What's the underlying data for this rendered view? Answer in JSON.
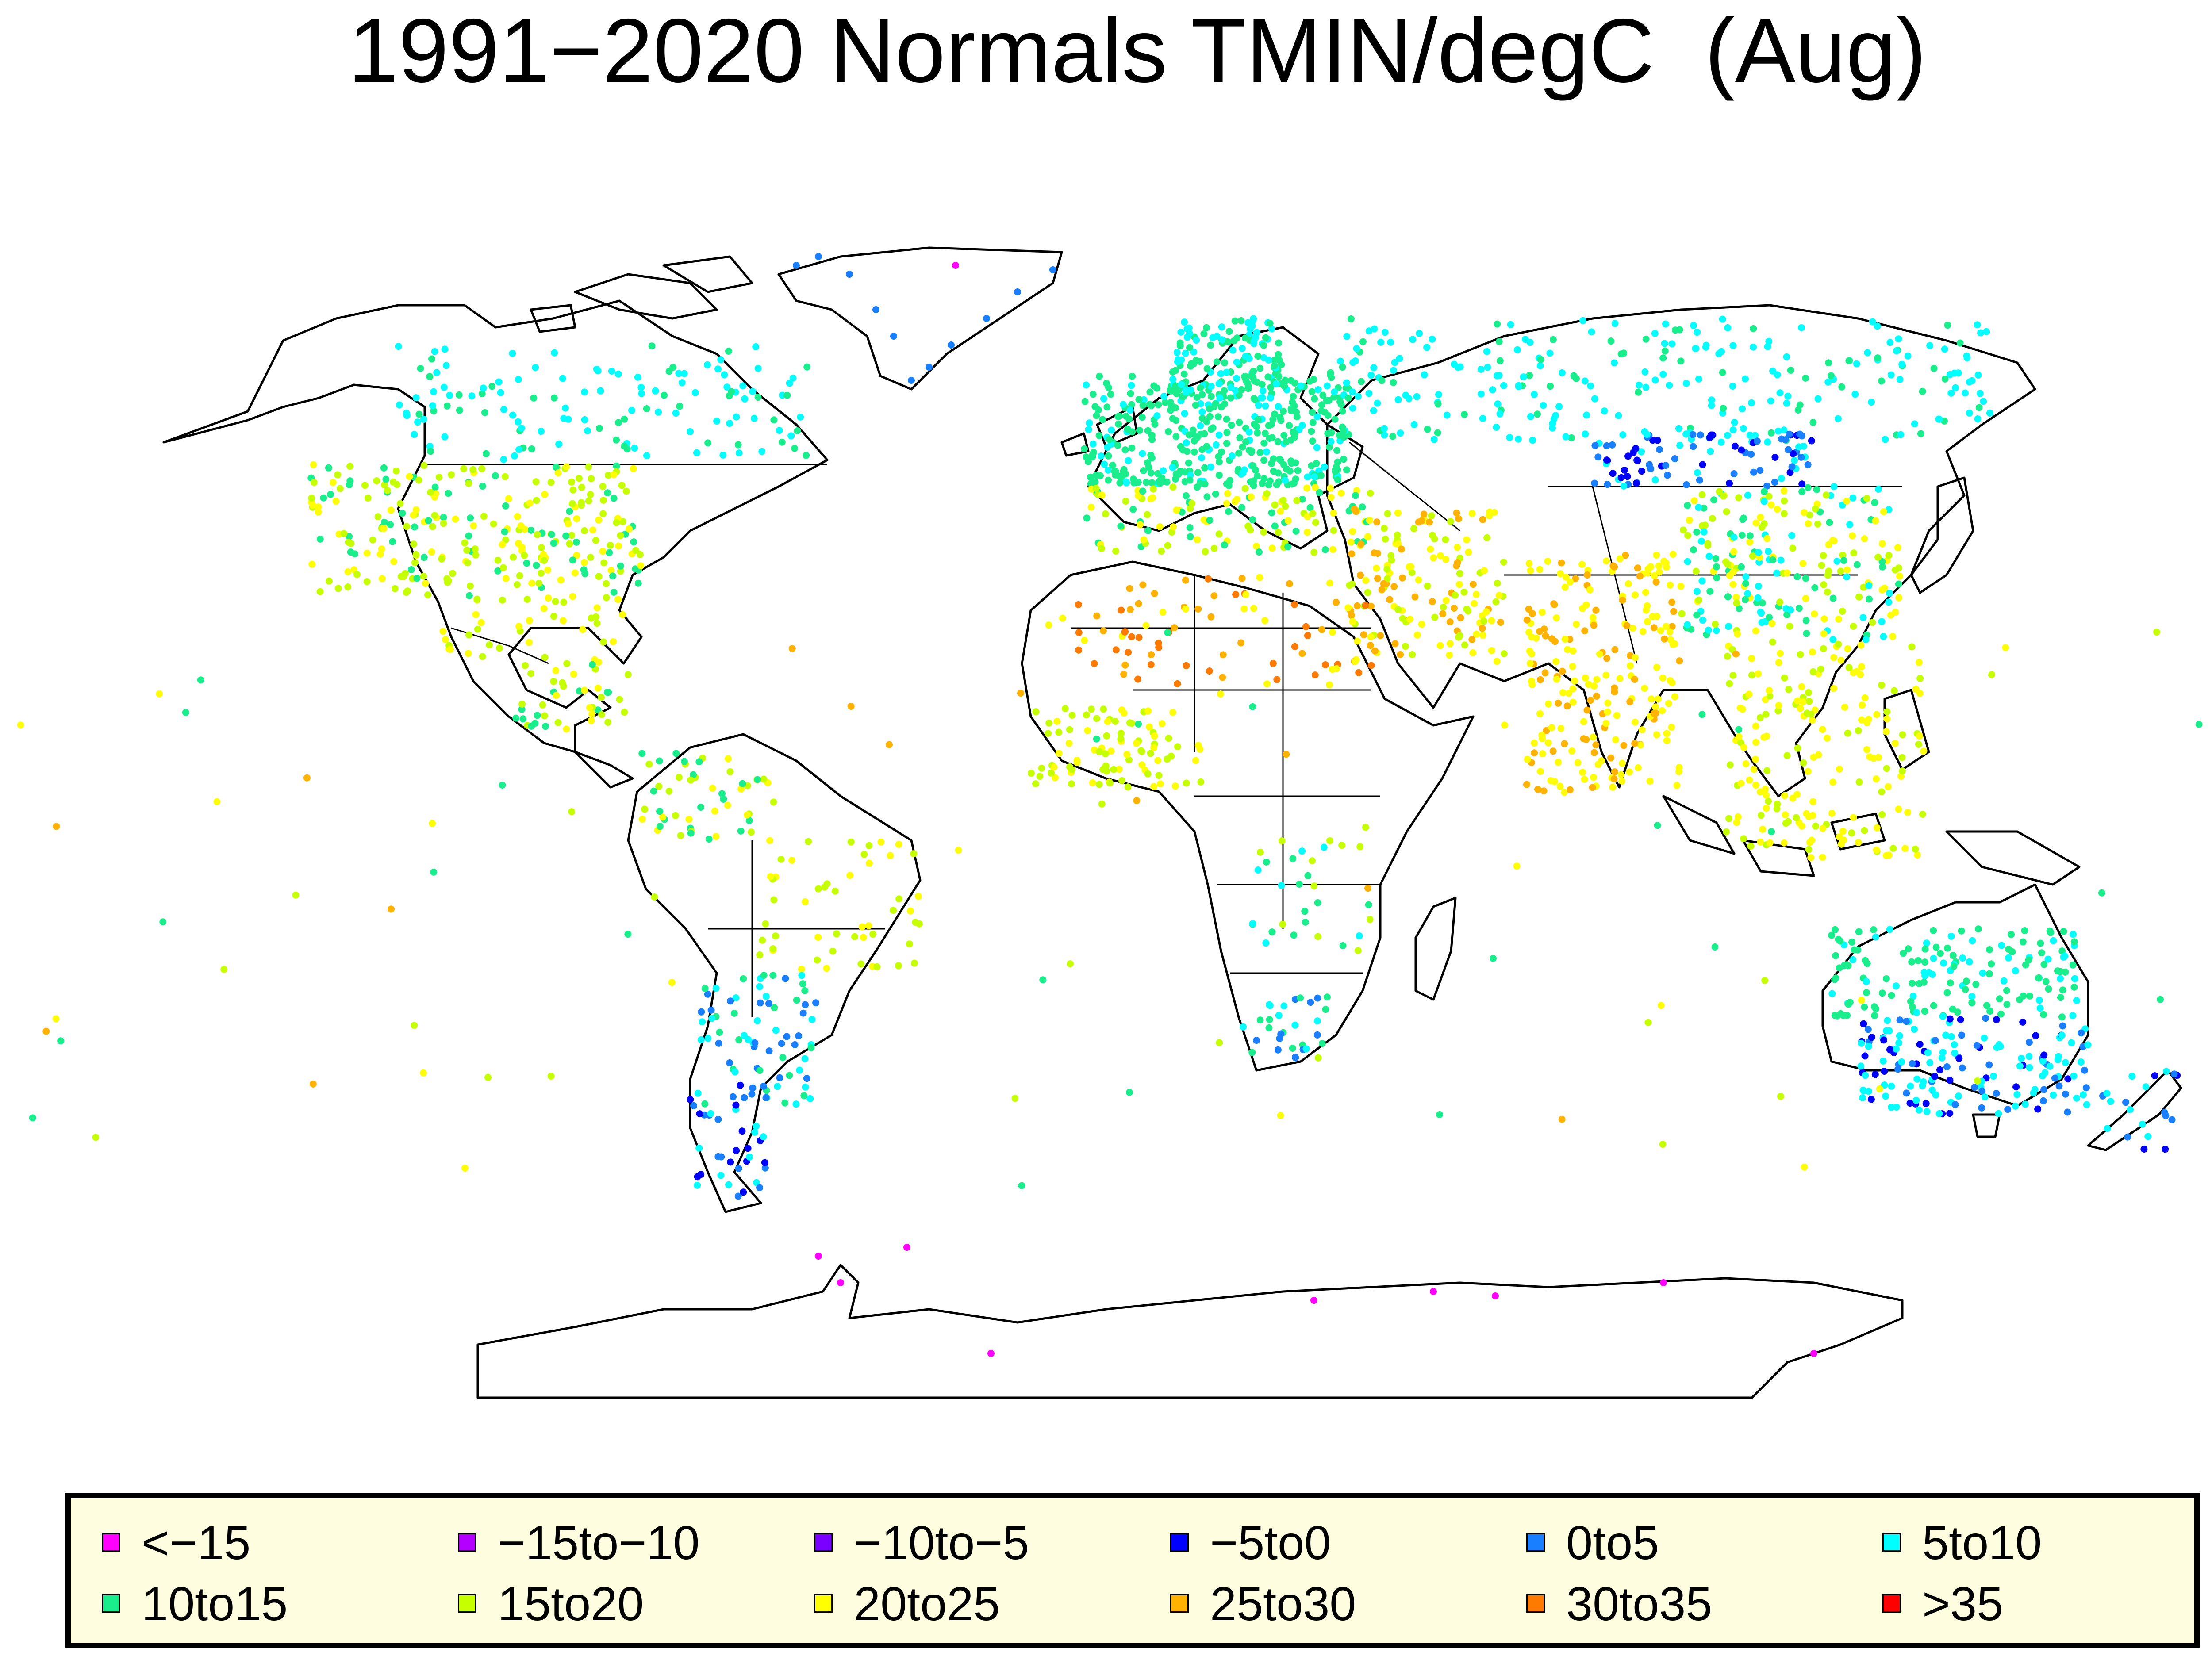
{
  "title": "1991−2020 Normals TMIN/degC  (Aug)",
  "legend": [
    {
      "label": "<−15",
      "color": "#ff00ff"
    },
    {
      "label": "−15to−10",
      "color": "#b300ff"
    },
    {
      "label": "−10to−5",
      "color": "#7a00ff"
    },
    {
      "label": "−5to0",
      "color": "#0000ff"
    },
    {
      "label": "0to5",
      "color": "#1a7fff"
    },
    {
      "label": "5to10",
      "color": "#00ffff"
    },
    {
      "label": "10to15",
      "color": "#1aee8c"
    },
    {
      "label": "15to20",
      "color": "#c6ff00"
    },
    {
      "label": "20to25",
      "color": "#ffff00"
    },
    {
      "label": "25to30",
      "color": "#ffb300"
    },
    {
      "label": "30to35",
      "color": "#ff7a00"
    },
    {
      "label": ">35",
      "color": "#ff0000"
    }
  ]
}
